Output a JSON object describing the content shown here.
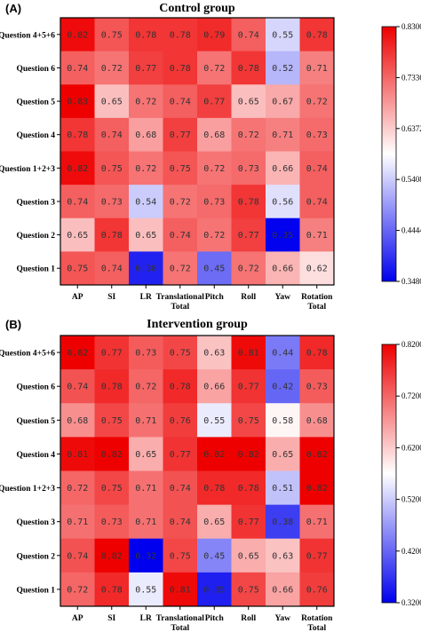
{
  "chart_data": [
    {
      "type": "heatmap",
      "panel_label": "(A)",
      "title": "Control group",
      "rows": [
        "Question 4+5+6",
        "Question 6",
        "Question 5",
        "Question 4",
        "Question 1+2+3",
        "Question 3",
        "Question 2",
        "Question 1"
      ],
      "columns": [
        [
          "AP"
        ],
        [
          "SI"
        ],
        [
          "LR"
        ],
        [
          "Translational",
          "Total"
        ],
        [
          "Pitch"
        ],
        [
          "Roll"
        ],
        [
          "Yaw"
        ],
        [
          "Rotation",
          "Total"
        ]
      ],
      "values": [
        [
          0.82,
          0.75,
          0.78,
          0.78,
          0.79,
          0.74,
          0.55,
          0.78
        ],
        [
          0.74,
          0.72,
          0.77,
          0.78,
          0.72,
          0.78,
          0.52,
          0.71
        ],
        [
          0.83,
          0.65,
          0.72,
          0.74,
          0.77,
          0.65,
          0.67,
          0.72
        ],
        [
          0.78,
          0.74,
          0.68,
          0.77,
          0.68,
          0.72,
          0.71,
          0.73
        ],
        [
          0.82,
          0.75,
          0.72,
          0.75,
          0.72,
          0.73,
          0.66,
          0.74
        ],
        [
          0.74,
          0.73,
          0.54,
          0.72,
          0.73,
          0.78,
          0.56,
          0.74
        ],
        [
          0.65,
          0.78,
          0.65,
          0.74,
          0.72,
          0.77,
          0.35,
          0.71
        ],
        [
          0.75,
          0.74,
          0.38,
          0.72,
          0.45,
          0.72,
          0.66,
          0.62
        ]
      ],
      "colorbar": {
        "min": 0.348,
        "max": 0.83,
        "ticks": [
          "0.8300",
          "0.7336",
          "0.6372",
          "0.5408",
          "0.4444",
          "0.3480"
        ],
        "colors": [
          "#ee0000",
          "#ffffff",
          "#0000ee"
        ]
      }
    },
    {
      "type": "heatmap",
      "panel_label": "(B)",
      "title": "Intervention group",
      "rows": [
        "Question 4+5+6",
        "Question 6",
        "Question 5",
        "Question 4",
        "Question 1+2+3",
        "Question 3",
        "Question 2",
        "Question 1"
      ],
      "columns": [
        [
          "AP"
        ],
        [
          "SI"
        ],
        [
          "LR"
        ],
        [
          "Translational",
          "Total"
        ],
        [
          "Pitch"
        ],
        [
          "Roll"
        ],
        [
          "Yaw"
        ],
        [
          "Rotation",
          "Total"
        ]
      ],
      "values": [
        [
          0.82,
          0.77,
          0.73,
          0.75,
          0.63,
          0.81,
          0.44,
          0.78
        ],
        [
          0.74,
          0.78,
          0.72,
          0.78,
          0.66,
          0.77,
          0.42,
          0.73
        ],
        [
          0.68,
          0.75,
          0.71,
          0.76,
          0.55,
          0.75,
          0.58,
          0.68
        ],
        [
          0.81,
          0.82,
          0.65,
          0.77,
          0.82,
          0.82,
          0.65,
          0.82
        ],
        [
          0.72,
          0.75,
          0.71,
          0.74,
          0.78,
          0.78,
          0.51,
          0.82
        ],
        [
          0.71,
          0.73,
          0.71,
          0.74,
          0.65,
          0.77,
          0.38,
          0.71
        ],
        [
          0.74,
          0.82,
          0.32,
          0.75,
          0.45,
          0.65,
          0.63,
          0.77
        ],
        [
          0.72,
          0.78,
          0.55,
          0.81,
          0.35,
          0.75,
          0.66,
          0.76
        ]
      ],
      "colorbar": {
        "min": 0.32,
        "max": 0.82,
        "ticks": [
          "0.8200",
          "0.7200",
          "0.6200",
          "0.5200",
          "0.4200",
          "0.3200"
        ],
        "colors": [
          "#ee0000",
          "#ffffff",
          "#0000ee"
        ]
      }
    }
  ]
}
